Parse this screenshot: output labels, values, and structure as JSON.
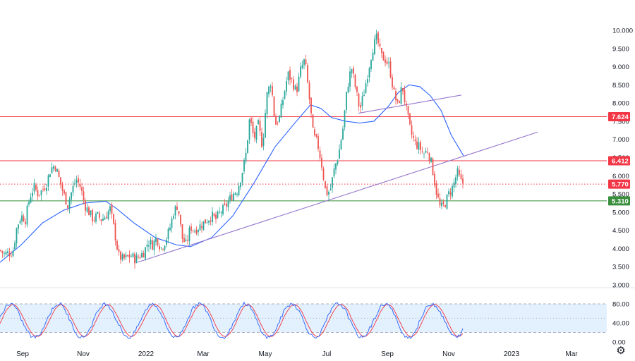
{
  "chart_data": {
    "type": "candlestick",
    "price_axis": {
      "ticks": [
        "10.000",
        "9.500",
        "9.000",
        "8.500",
        "8.000",
        "7.500",
        "7.000",
        "6.500",
        "6.000",
        "5.500",
        "5.000",
        "4.500",
        "4.000",
        "3.500",
        "3.000"
      ],
      "range": [
        3.0,
        10.0
      ]
    },
    "time_axis": {
      "labels": [
        "Sep",
        "Nov",
        "2022",
        "Mar",
        "May",
        "Jul",
        "Sep",
        "Nov",
        "2023",
        "Mar"
      ]
    },
    "levels": [
      {
        "value": 7.624,
        "label": "7.624",
        "color": "#f23645",
        "style": "solid"
      },
      {
        "value": 6.412,
        "label": "6.412",
        "color": "#f23645",
        "style": "solid"
      },
      {
        "value": 5.77,
        "label": "5.770",
        "color": "#f23645",
        "style": "dotted"
      },
      {
        "value": 5.31,
        "label": "5.310",
        "color": "#388e3c",
        "style": "solid"
      }
    ],
    "candle_colors": {
      "up": "#26a69a",
      "down": "#ef5350"
    },
    "moving_average_color": "#2962ff",
    "trendline_color": "#9575cd",
    "close_path": [
      [
        0,
        3.95
      ],
      [
        6,
        3.85
      ],
      [
        12,
        3.88
      ],
      [
        18,
        3.9
      ],
      [
        24,
        4.6
      ],
      [
        30,
        4.9
      ],
      [
        36,
        4.8
      ],
      [
        42,
        5.4
      ],
      [
        48,
        5.7
      ],
      [
        54,
        5.5
      ],
      [
        60,
        5.6
      ],
      [
        66,
        5.8
      ],
      [
        72,
        6.2
      ],
      [
        78,
        6.3
      ],
      [
        84,
        5.9
      ],
      [
        90,
        5.5
      ],
      [
        96,
        5.2
      ],
      [
        102,
        5.6
      ],
      [
        108,
        5.9
      ],
      [
        114,
        5.7
      ],
      [
        120,
        5.2
      ],
      [
        126,
        5.0
      ],
      [
        132,
        4.8
      ],
      [
        138,
        4.9
      ],
      [
        144,
        4.8
      ],
      [
        150,
        4.9
      ],
      [
        156,
        5.1
      ],
      [
        162,
        4.5
      ],
      [
        168,
        3.8
      ],
      [
        174,
        3.7
      ],
      [
        180,
        3.75
      ],
      [
        186,
        3.8
      ],
      [
        192,
        3.7
      ],
      [
        198,
        3.8
      ],
      [
        204,
        3.9
      ],
      [
        210,
        4.2
      ],
      [
        216,
        4.1
      ],
      [
        222,
        4.3
      ],
      [
        228,
        4.0
      ],
      [
        234,
        4.2
      ],
      [
        240,
        4.5
      ],
      [
        246,
        5.0
      ],
      [
        252,
        5.2
      ],
      [
        258,
        4.3
      ],
      [
        264,
        4.1
      ],
      [
        270,
        4.6
      ],
      [
        276,
        4.5
      ],
      [
        282,
        4.6
      ],
      [
        288,
        4.7
      ],
      [
        294,
        4.8
      ],
      [
        300,
        4.9
      ],
      [
        306,
        4.8
      ],
      [
        312,
        5.0
      ],
      [
        318,
        5.1
      ],
      [
        324,
        5.3
      ],
      [
        330,
        5.5
      ],
      [
        336,
        5.6
      ],
      [
        342,
        6.0
      ],
      [
        348,
        6.5
      ],
      [
        354,
        7.6
      ],
      [
        360,
        7.0
      ],
      [
        366,
        7.4
      ],
      [
        372,
        6.8
      ],
      [
        378,
        8.2
      ],
      [
        384,
        8.6
      ],
      [
        390,
        7.4
      ],
      [
        396,
        7.6
      ],
      [
        402,
        8.2
      ],
      [
        408,
        8.8
      ],
      [
        414,
        8.6
      ],
      [
        420,
        8.3
      ],
      [
        426,
        8.9
      ],
      [
        432,
        9.2
      ],
      [
        438,
        8.2
      ],
      [
        444,
        7.1
      ],
      [
        450,
        6.9
      ],
      [
        456,
        6.3
      ],
      [
        462,
        5.5
      ],
      [
        468,
        5.6
      ],
      [
        474,
        6.2
      ],
      [
        480,
        6.6
      ],
      [
        486,
        7.3
      ],
      [
        492,
        8.4
      ],
      [
        498,
        9.0
      ],
      [
        504,
        8.4
      ],
      [
        510,
        7.8
      ],
      [
        516,
        8.3
      ],
      [
        522,
        8.9
      ],
      [
        528,
        9.5
      ],
      [
        534,
        9.8
      ],
      [
        540,
        9.3
      ],
      [
        546,
        9.2
      ],
      [
        552,
        9.0
      ],
      [
        558,
        8.3
      ],
      [
        564,
        7.9
      ],
      [
        570,
        8.5
      ],
      [
        576,
        7.8
      ],
      [
        582,
        7.2
      ],
      [
        588,
        6.9
      ],
      [
        594,
        6.8
      ],
      [
        600,
        6.6
      ],
      [
        606,
        6.7
      ],
      [
        612,
        6.3
      ],
      [
        618,
        5.6
      ],
      [
        624,
        5.1
      ],
      [
        630,
        5.2
      ],
      [
        636,
        5.5
      ],
      [
        642,
        5.7
      ],
      [
        648,
        6.1
      ],
      [
        654,
        5.8
      ]
    ],
    "moving_average": [
      [
        0,
        3.62
      ],
      [
        30,
        4.1
      ],
      [
        60,
        4.7
      ],
      [
        90,
        5.05
      ],
      [
        120,
        5.25
      ],
      [
        150,
        5.3
      ],
      [
        165,
        5.1
      ],
      [
        190,
        4.7
      ],
      [
        220,
        4.3
      ],
      [
        250,
        4.1
      ],
      [
        270,
        4.05
      ],
      [
        300,
        4.3
      ],
      [
        330,
        4.9
      ],
      [
        360,
        5.8
      ],
      [
        390,
        6.8
      ],
      [
        420,
        7.5
      ],
      [
        440,
        7.95
      ],
      [
        455,
        7.85
      ],
      [
        470,
        7.6
      ],
      [
        490,
        7.5
      ],
      [
        510,
        7.45
      ],
      [
        530,
        7.5
      ],
      [
        550,
        7.9
      ],
      [
        565,
        8.3
      ],
      [
        580,
        8.5
      ],
      [
        595,
        8.45
      ],
      [
        610,
        8.2
      ],
      [
        625,
        7.8
      ],
      [
        640,
        7.1
      ],
      [
        657,
        6.55
      ]
    ],
    "trendlines": [
      {
        "start": [
          195,
          3.62
        ],
        "end": [
          762,
          7.2
        ]
      },
      {
        "start": [
          508,
          7.72
        ],
        "end": [
          654,
          8.22
        ]
      }
    ],
    "oscillator": {
      "ticks": [
        "80.00",
        "40.00",
        "0.00"
      ],
      "range": [
        0,
        100
      ],
      "overbought": 80,
      "oversold": 20,
      "middle": 50,
      "k_color": "#2962ff",
      "d_color": "#f23645",
      "band_color": "#e3f0fd"
    }
  },
  "settings_icon": "gear-icon"
}
